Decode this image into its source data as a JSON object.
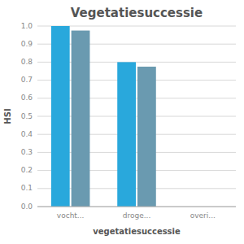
{
  "chart_data": {
    "type": "bar",
    "title": "Vegetatiesuccessie",
    "xlabel": "vegetatiesuccessie",
    "ylabel": "HSI",
    "categories": [
      "vocht...",
      "droge...",
      "overi..."
    ],
    "series": [
      {
        "color": "#29a8dc",
        "values": [
          1.0,
          0.8,
          0.0
        ]
      },
      {
        "color": "#6a9ab0",
        "values": [
          0.975,
          0.775,
          0.0
        ]
      }
    ],
    "ylim": [
      0.0,
      1.0
    ],
    "yticks": [
      {
        "value": 0.0,
        "label": "0.0"
      },
      {
        "value": 0.1,
        "label": "0.1"
      },
      {
        "value": 0.2,
        "label": "0.2"
      },
      {
        "value": 0.3,
        "label": "0.3"
      },
      {
        "value": 0.4,
        "label": "0.4"
      },
      {
        "value": 0.5,
        "label": "0.5"
      },
      {
        "value": 0.6,
        "label": "0.6"
      },
      {
        "value": 0.7,
        "label": "0.7"
      },
      {
        "value": 0.8,
        "label": "0.8"
      },
      {
        "value": 0.9,
        "label": "0.9"
      },
      {
        "value": 1.0,
        "label": "1.0"
      }
    ],
    "grid": true
  }
}
